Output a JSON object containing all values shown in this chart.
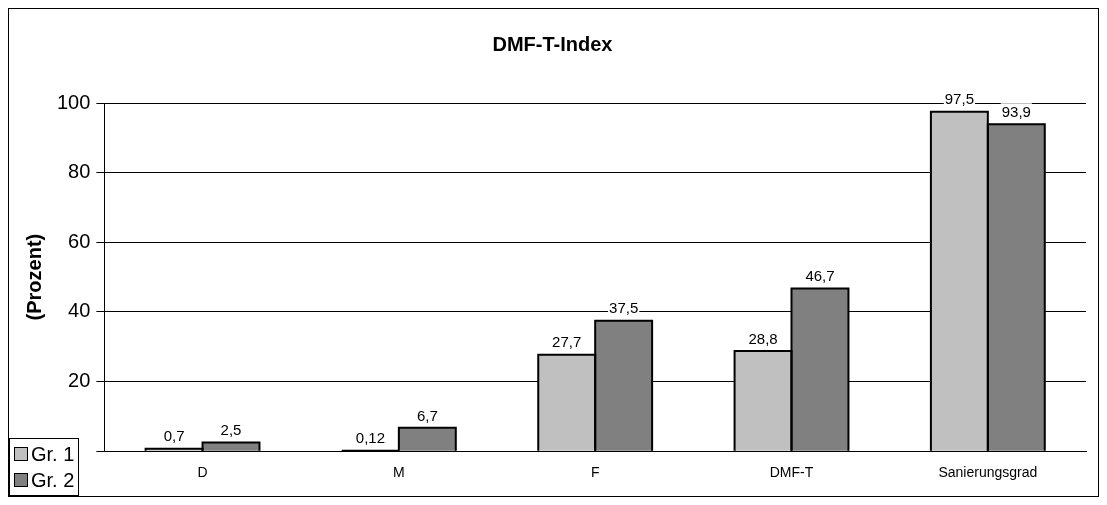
{
  "chart_data": {
    "type": "bar",
    "title": "DMF-T-Index",
    "ylabel": "(Prozent)",
    "categories": [
      "D",
      "M",
      "F",
      "DMF-T",
      "Sanierungsgrad"
    ],
    "series": [
      {
        "name": "Gr. 1",
        "color": "#c0c0c0",
        "values": [
          0.7,
          0.12,
          27.7,
          28.8,
          97.5
        ],
        "value_labels": [
          "0,7",
          "0,12",
          "27,7",
          "28,8",
          "97,5"
        ]
      },
      {
        "name": "Gr. 2",
        "color": "#808080",
        "values": [
          2.5,
          6.7,
          37.5,
          46.7,
          93.9
        ],
        "value_labels": [
          "2,5",
          "6,7",
          "37,5",
          "46,7",
          "93,9"
        ]
      }
    ],
    "ylim": [
      0,
      100
    ],
    "yticks": [
      {
        "value": 0,
        "label": null
      },
      20,
      40,
      60,
      80,
      100
    ],
    "grid": "y",
    "legend": "bottom left"
  }
}
